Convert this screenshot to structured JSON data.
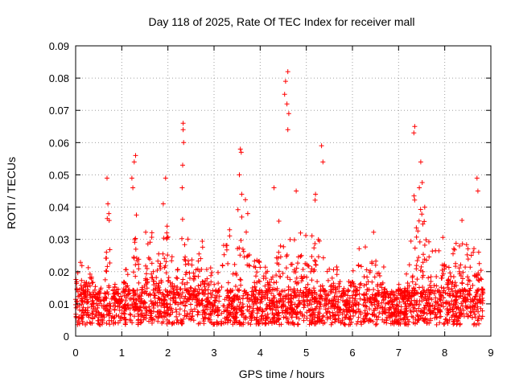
{
  "chart_data": {
    "type": "scatter",
    "title": "Day 118 of 2025, Rate Of TEC Index for receiver mall",
    "xlabel": "GPS time / hours",
    "ylabel": "ROTI / TECUs",
    "xlim": [
      0,
      9
    ],
    "ylim": [
      0,
      0.09
    ],
    "xticks": [
      "0",
      "1",
      "2",
      "3",
      "4",
      "5",
      "6",
      "7",
      "8",
      "9"
    ],
    "yticks": [
      "0",
      "0.01",
      "0.02",
      "0.03",
      "0.04",
      "0.05",
      "0.06",
      "0.07",
      "0.08",
      "0.09"
    ],
    "grid": true,
    "marker": "plus",
    "series_color": "#ff0000",
    "data_end_hours": 8.83,
    "baseline_level": 0.01,
    "spikes": [
      {
        "x": 0.68,
        "y": 0.049
      },
      {
        "x": 0.7,
        "y": 0.041
      },
      {
        "x": 0.72,
        "y": 0.038
      },
      {
        "x": 1.22,
        "y": 0.049
      },
      {
        "x": 1.27,
        "y": 0.054
      },
      {
        "x": 1.3,
        "y": 0.056
      },
      {
        "x": 1.24,
        "y": 0.046
      },
      {
        "x": 1.9,
        "y": 0.041
      },
      {
        "x": 1.95,
        "y": 0.049
      },
      {
        "x": 2.33,
        "y": 0.066
      },
      {
        "x": 2.33,
        "y": 0.064
      },
      {
        "x": 2.34,
        "y": 0.06
      },
      {
        "x": 2.32,
        "y": 0.053
      },
      {
        "x": 2.31,
        "y": 0.046
      },
      {
        "x": 3.57,
        "y": 0.058
      },
      {
        "x": 3.59,
        "y": 0.057
      },
      {
        "x": 3.55,
        "y": 0.05
      },
      {
        "x": 3.6,
        "y": 0.044
      },
      {
        "x": 4.3,
        "y": 0.046
      },
      {
        "x": 4.53,
        "y": 0.075
      },
      {
        "x": 4.55,
        "y": 0.079
      },
      {
        "x": 4.6,
        "y": 0.082
      },
      {
        "x": 4.58,
        "y": 0.072
      },
      {
        "x": 4.62,
        "y": 0.069
      },
      {
        "x": 4.6,
        "y": 0.064
      },
      {
        "x": 4.78,
        "y": 0.045
      },
      {
        "x": 5.2,
        "y": 0.044
      },
      {
        "x": 5.33,
        "y": 0.059
      },
      {
        "x": 5.36,
        "y": 0.054
      },
      {
        "x": 7.35,
        "y": 0.065
      },
      {
        "x": 7.33,
        "y": 0.063
      },
      {
        "x": 7.48,
        "y": 0.054
      },
      {
        "x": 7.45,
        "y": 0.046
      },
      {
        "x": 8.7,
        "y": 0.049
      },
      {
        "x": 8.72,
        "y": 0.045
      }
    ]
  }
}
